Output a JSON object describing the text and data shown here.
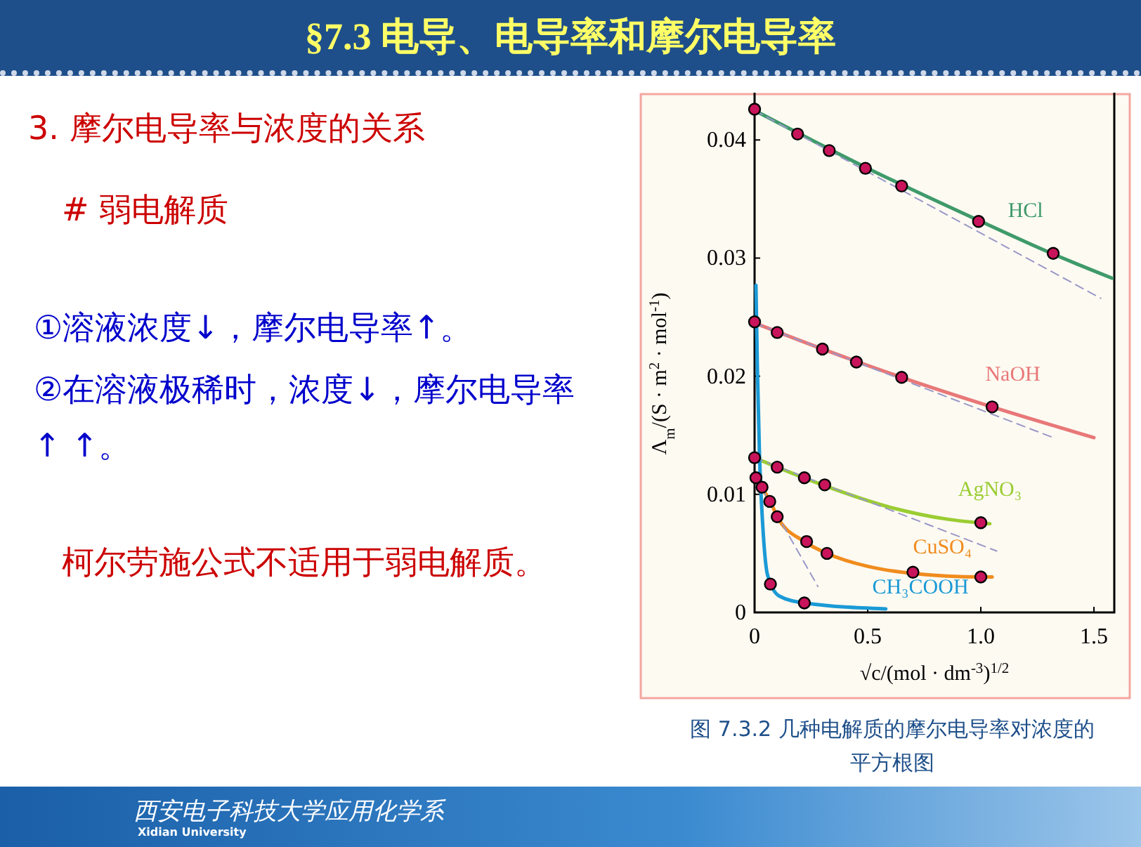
{
  "chart_data": {
    "type": "line",
    "title": "§7.3  电导、电导率和摩尔电导率",
    "xlabel": "√c/(mol · dm$^{-3}$)$^{1/2}$",
    "ylabel": "Λ$_{m}$/(S · m$^{2}$ · mol$^{-1}$)",
    "xlim": [
      0,
      1.59
    ],
    "ylim": [
      0,
      0.044
    ],
    "xticks": [
      0,
      0.5,
      {
        "value": 1.0,
        "label": "1.0"
      },
      1.5
    ],
    "yticks": [
      0,
      0.01,
      0.02,
      0.03,
      0.04
    ],
    "grid": false,
    "series": [
      {
        "name": "HCl",
        "color": "#3f9a6a",
        "x": [
          0,
          0.5,
          1.0,
          1.3,
          1.58
        ],
        "values": [
          0.0425,
          0.0376,
          0.0331,
          0.0305,
          0.0283
        ]
      },
      {
        "name": "NaOH",
        "color": "#e87878",
        "x": [
          0,
          0.3,
          0.65,
          1.05,
          1.5
        ],
        "values": [
          0.0245,
          0.0223,
          0.0199,
          0.0174,
          0.0148
        ]
      },
      {
        "name": "AgNO₃",
        "color": "#9acd32",
        "x": [
          0,
          0.1,
          0.3,
          0.6,
          0.85,
          1.04
        ],
        "values": [
          0.0131,
          0.0123,
          0.0108,
          0.0089,
          0.0079,
          0.0075
        ]
      },
      {
        "name": "CuSO₄",
        "color": "#f08c1e",
        "x": [
          0,
          0.03,
          0.07,
          0.1,
          0.22,
          0.32,
          0.5,
          0.7,
          1.0,
          1.05
        ],
        "values": [
          0.0116,
          0.0106,
          0.0094,
          0.0081,
          0.006,
          0.005,
          0.0039,
          0.0033,
          0.003,
          0.003
        ]
      },
      {
        "name": "CH₃COOH",
        "color": "#1a9ad6",
        "x": [
          0.006,
          0.012,
          0.022,
          0.037,
          0.057,
          0.108,
          0.22,
          0.58
        ],
        "values": [
          0.0277,
          0.021,
          0.0131,
          0.0071,
          0.0032,
          0.0014,
          0.0008,
          0.0003
        ]
      },
      {
        "type": "line",
        "line_style": "dashed",
        "color": "#9a98c8",
        "x": [
          0,
          1.53
        ],
        "values": [
          0.0425,
          0.0266
        ]
      },
      {
        "type": "line",
        "line_style": "dashed",
        "color": "#9a98c8",
        "x": [
          0,
          1.32
        ],
        "values": [
          0.0245,
          0.0148
        ]
      },
      {
        "type": "line",
        "line_style": "dashed",
        "color": "#9a98c8",
        "x": [
          0,
          1.07
        ],
        "values": [
          0.0131,
          0.0052
        ]
      },
      {
        "type": "line",
        "line_style": "dashed",
        "color": "#9a98c8",
        "x": [
          0,
          0.28
        ],
        "values": [
          0.0116,
          0.0022
        ]
      },
      {
        "type": "scatter",
        "color": "#c8145a",
        "x": [
          0,
          0.19,
          0.33,
          0.49,
          0.65,
          0.99,
          1.32
        ],
        "values": [
          0.0426,
          0.0405,
          0.0391,
          0.0376,
          0.0361,
          0.0331,
          0.0304
        ]
      },
      {
        "type": "scatter",
        "color": "#c8145a",
        "x": [
          0,
          0.1,
          0.3,
          0.45,
          0.65,
          1.05
        ],
        "values": [
          0.0246,
          0.0237,
          0.0223,
          0.0212,
          0.0199,
          0.0174
        ]
      },
      {
        "type": "scatter",
        "color": "#c8145a",
        "x": [
          0,
          0.1,
          0.22,
          0.31,
          1.0
        ],
        "values": [
          0.0131,
          0.0123,
          0.0114,
          0.0108,
          0.0076
        ]
      },
      {
        "type": "scatter",
        "color": "#c8145a",
        "x": [
          0.006,
          0.033,
          0.067,
          0.1,
          0.23,
          0.32,
          0.7,
          1.0
        ],
        "values": [
          0.0114,
          0.0106,
          0.0094,
          0.0081,
          0.006,
          0.005,
          0.0034,
          0.003
        ]
      },
      {
        "type": "scatter",
        "color": "#c8145a",
        "x": [
          0.07,
          0.22
        ],
        "values": [
          0.0024,
          0.0008
        ]
      }
    ],
    "annotations": [
      "3. 摩尔电导率与浓度的关系",
      "# 弱电解质",
      "①溶液浓度↓，摩尔电导率↑。",
      "②在溶液极稀时，浓度↓，摩尔电导率↑ ↑。",
      "柯尔劳施公式不适用于弱电解质。",
      "图 7.3.2  几种电解质的摩尔电导率对浓度的平方根图",
      "西安电子科技大学应用化学系",
      "Xidian University"
    ]
  }
}
